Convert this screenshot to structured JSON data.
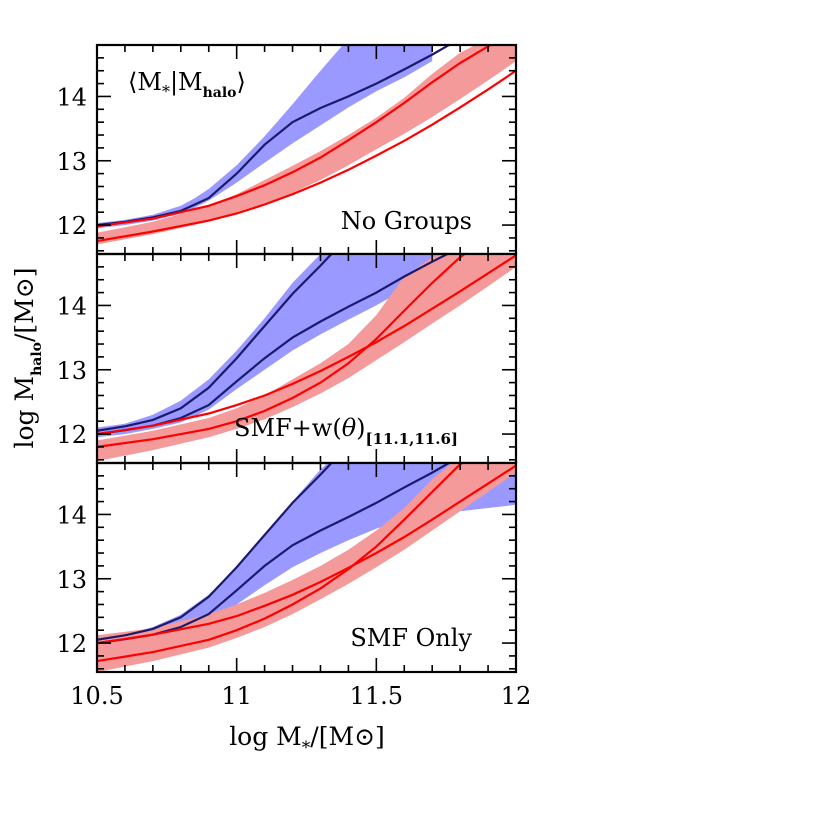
{
  "chart_data": {
    "type": "area",
    "x_axis": {
      "label_main": "log M",
      "label_sub": "*",
      "label_unit_open": "/[M",
      "label_unit_symbol": "⊙",
      "label_unit_close": "]",
      "xlim": [
        10.5,
        12.0
      ],
      "ticks": [
        10.5,
        11.0,
        11.5,
        12.0
      ],
      "tick_labels": [
        "10.5",
        "11",
        "11.5",
        "12"
      ]
    },
    "y_axis": {
      "label_main": "log M",
      "label_sub": "halo",
      "label_unit_open": "/[M",
      "label_unit_symbol": "⊙",
      "label_unit_close": "]",
      "ylim": [
        11.55,
        14.8
      ],
      "ticks": [
        12,
        13,
        14
      ],
      "tick_labels": [
        "12",
        "13",
        "14"
      ]
    },
    "colors": {
      "blue_band": "#9999ff",
      "blue_line": "#1a1a6e",
      "red_band": "#f49a9a",
      "red_line": "#ff0000"
    },
    "panels": [
      {
        "annotation": "No Groups",
        "top_label_main": "⟨M",
        "top_label_sub1": "*",
        "top_label_mid": "|M",
        "top_label_sub2": "halo",
        "top_label_end": "⟩",
        "blue_band": {
          "x": [
            10.5,
            10.6,
            10.7,
            10.8,
            10.85,
            10.9,
            11.0,
            11.1,
            11.2,
            11.3,
            11.4,
            11.5,
            11.6,
            11.7
          ],
          "lower": [
            11.95,
            12.0,
            12.07,
            12.18,
            12.27,
            12.38,
            12.66,
            12.97,
            13.27,
            13.55,
            13.83,
            14.08,
            14.3,
            14.55
          ],
          "upper": [
            12.03,
            12.08,
            12.16,
            12.3,
            12.42,
            12.56,
            12.93,
            13.38,
            13.88,
            14.4,
            14.9,
            15.3,
            15.6,
            15.9
          ]
        },
        "red_band": {
          "x": [
            10.5,
            10.7,
            10.9,
            11.0,
            11.1,
            11.2,
            11.3,
            11.4,
            11.5,
            11.6,
            11.7,
            11.8,
            11.9,
            12.0
          ],
          "lower": [
            11.7,
            11.86,
            12.05,
            12.18,
            12.33,
            12.5,
            12.7,
            12.93,
            13.18,
            13.42,
            13.68,
            13.96,
            14.25,
            14.55
          ],
          "upper": [
            11.88,
            12.05,
            12.3,
            12.48,
            12.7,
            12.92,
            13.15,
            13.4,
            13.67,
            13.98,
            14.35,
            14.68,
            14.9,
            15.0
          ]
        },
        "blue_lines": [
          {
            "x": [
              10.5,
              10.6,
              10.7,
              10.8,
              10.9,
              11.0,
              11.1,
              11.2,
              11.3,
              11.4,
              11.5,
              11.6,
              11.7,
              11.8
            ],
            "y": [
              12.0,
              12.05,
              12.12,
              12.22,
              12.42,
              12.8,
              13.25,
              13.6,
              13.82,
              14.0,
              14.2,
              14.42,
              14.65,
              14.9
            ]
          }
        ],
        "red_lines": [
          {
            "x": [
              10.5,
              10.7,
              10.9,
              11.0,
              11.1,
              11.2,
              11.3,
              11.4,
              11.5,
              11.6,
              11.7,
              11.8,
              11.9,
              12.0
            ],
            "y": [
              11.98,
              12.1,
              12.3,
              12.45,
              12.62,
              12.82,
              13.05,
              13.32,
              13.6,
              13.9,
              14.22,
              14.52,
              14.78,
              15.0
            ]
          },
          {
            "x": [
              10.5,
              10.7,
              10.9,
              11.0,
              11.1,
              11.2,
              11.3,
              11.4,
              11.5,
              11.6,
              11.7,
              11.8,
              11.9,
              12.0
            ],
            "y": [
              11.75,
              11.9,
              12.07,
              12.18,
              12.32,
              12.48,
              12.66,
              12.86,
              13.08,
              13.31,
              13.56,
              13.83,
              14.11,
              14.4
            ]
          }
        ]
      },
      {
        "annotation_main": "SMF+w(",
        "annotation_theta": "θ",
        "annotation_close": ")",
        "annotation_sub": "[11.1,11.6]",
        "blue_band": {
          "x": [
            10.5,
            10.6,
            10.7,
            10.8,
            10.9,
            11.0,
            11.1,
            11.2,
            11.3,
            11.4,
            11.5,
            11.6,
            11.7,
            11.8,
            11.9,
            12.0
          ],
          "lower": [
            11.95,
            12.0,
            12.08,
            12.18,
            12.38,
            12.7,
            13.0,
            13.3,
            13.55,
            13.78,
            14.0,
            14.25,
            14.45,
            14.55,
            14.6,
            14.7
          ],
          "upper": [
            12.1,
            12.16,
            12.3,
            12.52,
            12.85,
            13.3,
            13.8,
            14.35,
            14.8,
            15.1,
            15.3,
            15.4,
            15.5,
            15.5,
            15.5,
            15.5
          ]
        },
        "red_band": {
          "x": [
            10.5,
            10.7,
            10.9,
            11.0,
            11.1,
            11.2,
            11.3,
            11.4,
            11.5,
            11.6,
            11.7,
            11.8,
            11.9,
            12.0
          ],
          "lower": [
            11.58,
            11.75,
            11.95,
            12.08,
            12.23,
            12.42,
            12.63,
            12.87,
            13.15,
            13.43,
            13.72,
            14.0,
            14.3,
            14.6
          ],
          "upper": [
            11.9,
            12.05,
            12.25,
            12.4,
            12.6,
            12.85,
            13.1,
            13.4,
            13.85,
            14.45,
            14.75,
            14.9,
            15.0,
            15.1
          ]
        },
        "blue_lines": [
          {
            "x": [
              10.5,
              10.6,
              10.7,
              10.8,
              10.9,
              11.0,
              11.1,
              11.2,
              11.3,
              11.35
            ],
            "y": [
              12.05,
              12.12,
              12.22,
              12.4,
              12.72,
              13.18,
              13.68,
              14.18,
              14.62,
              14.85
            ]
          },
          {
            "x": [
              10.5,
              10.6,
              10.7,
              10.8,
              10.9,
              11.0,
              11.1,
              11.2,
              11.3,
              11.4,
              11.5,
              11.6,
              11.7,
              11.8
            ],
            "y": [
              12.0,
              12.06,
              12.13,
              12.25,
              12.45,
              12.82,
              13.18,
              13.5,
              13.75,
              13.98,
              14.2,
              14.45,
              14.68,
              14.9
            ]
          }
        ],
        "red_lines": [
          {
            "x": [
              10.5,
              10.7,
              10.9,
              11.0,
              11.1,
              11.2,
              11.3,
              11.4,
              11.5,
              11.6,
              11.7,
              11.8,
              11.9
            ],
            "y": [
              11.8,
              11.92,
              12.08,
              12.2,
              12.36,
              12.56,
              12.8,
              13.1,
              13.48,
              13.92,
              14.35,
              14.75,
              15.05
            ]
          },
          {
            "x": [
              10.5,
              10.7,
              10.9,
              11.0,
              11.1,
              11.2,
              11.3,
              11.4,
              11.5,
              11.6,
              11.7,
              11.8,
              11.9,
              12.0
            ],
            "y": [
              12.0,
              12.13,
              12.32,
              12.45,
              12.6,
              12.78,
              12.98,
              13.2,
              13.43,
              13.68,
              13.95,
              14.22,
              14.5,
              14.78
            ]
          }
        ]
      },
      {
        "annotation": "SMF Only",
        "blue_band": {
          "x": [
            10.5,
            10.6,
            10.7,
            10.8,
            10.9,
            11.0,
            11.1,
            11.2,
            11.3,
            11.4,
            11.5,
            11.6,
            11.7,
            11.8,
            11.9,
            12.0
          ],
          "lower": [
            11.95,
            12.0,
            12.07,
            12.17,
            12.32,
            12.6,
            12.9,
            13.18,
            13.4,
            13.6,
            13.78,
            13.92,
            14.0,
            14.05,
            14.1,
            14.15
          ],
          "upper": [
            12.08,
            12.13,
            12.25,
            12.44,
            12.75,
            13.18,
            13.68,
            14.2,
            14.7,
            15.1,
            15.4,
            15.6,
            15.7,
            15.8,
            15.8,
            15.8
          ]
        },
        "red_band": {
          "x": [
            10.5,
            10.7,
            10.9,
            11.0,
            11.1,
            11.2,
            11.3,
            11.4,
            11.5,
            11.6,
            11.7,
            11.8,
            11.9,
            12.0
          ],
          "lower": [
            11.55,
            11.72,
            11.93,
            12.08,
            12.25,
            12.45,
            12.68,
            12.92,
            13.18,
            13.45,
            13.75,
            14.05,
            14.35,
            14.65
          ],
          "upper": [
            12.12,
            12.23,
            12.45,
            12.6,
            12.78,
            12.98,
            13.2,
            13.45,
            13.75,
            14.1,
            14.55,
            14.9,
            15.1,
            15.2
          ]
        },
        "blue_lines": [
          {
            "x": [
              10.5,
              10.6,
              10.7,
              10.8,
              10.9,
              11.0,
              11.1,
              11.2,
              11.3,
              11.35
            ],
            "y": [
              12.05,
              12.12,
              12.22,
              12.4,
              12.72,
              13.18,
              13.68,
              14.18,
              14.62,
              14.85
            ]
          },
          {
            "x": [
              10.5,
              10.6,
              10.7,
              10.8,
              10.9,
              11.0,
              11.1,
              11.2,
              11.3,
              11.4,
              11.5,
              11.6,
              11.7,
              11.8
            ],
            "y": [
              12.0,
              12.06,
              12.13,
              12.25,
              12.45,
              12.82,
              13.2,
              13.52,
              13.75,
              13.96,
              14.18,
              14.42,
              14.65,
              14.9
            ]
          }
        ],
        "red_lines": [
          {
            "x": [
              10.5,
              10.7,
              10.9,
              11.0,
              11.1,
              11.2,
              11.3,
              11.4,
              11.5,
              11.6,
              11.7,
              11.8,
              11.9
            ],
            "y": [
              11.72,
              11.86,
              12.05,
              12.2,
              12.38,
              12.6,
              12.85,
              13.15,
              13.5,
              13.92,
              14.35,
              14.78,
              15.05
            ]
          },
          {
            "x": [
              10.5,
              10.7,
              10.9,
              11.0,
              11.1,
              11.2,
              11.3,
              11.4,
              11.5,
              11.6,
              11.7,
              11.8,
              11.9,
              12.0
            ],
            "y": [
              12.0,
              12.13,
              12.3,
              12.42,
              12.58,
              12.75,
              12.95,
              13.17,
              13.4,
              13.65,
              13.92,
              14.2,
              14.48,
              14.76
            ]
          }
        ]
      }
    ]
  }
}
